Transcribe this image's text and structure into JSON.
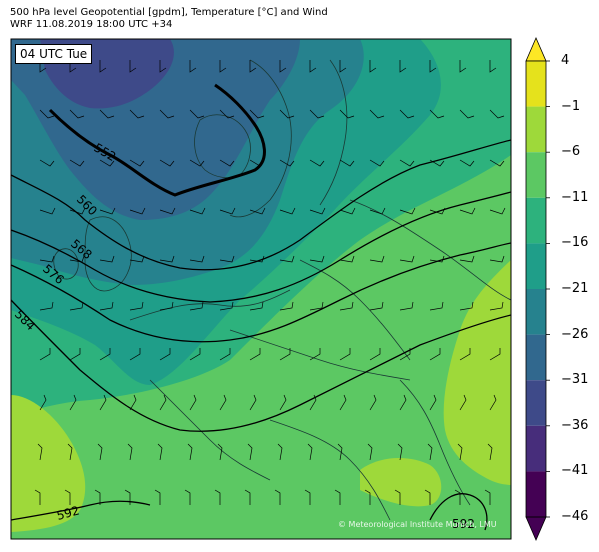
{
  "title": {
    "line1": "500 hPa level Geopotential [gpdm], Temperature [°C] and Wind",
    "line2": "WRF 11.08.2019 18:00 UTC +34"
  },
  "time_label": "04 UTC Tue",
  "copyright": "© Meteorological Institute Munich, LMU",
  "colorbar": {
    "ticks": [
      "4",
      "−1",
      "−6",
      "−11",
      "−16",
      "−21",
      "−26",
      "−31",
      "−36",
      "−41",
      "−46"
    ],
    "colors": [
      "#e5e21c",
      "#9ed93a",
      "#5cc863",
      "#2db27d",
      "#1f9e89",
      "#26828e",
      "#31688e",
      "#3e4a89",
      "#472d7b",
      "#440154"
    ]
  },
  "contour_labels": [
    {
      "text": "552"
    },
    {
      "text": "560"
    },
    {
      "text": "568"
    },
    {
      "text": "576"
    },
    {
      "text": "584"
    },
    {
      "text": "592"
    },
    {
      "text": "592"
    }
  ]
}
